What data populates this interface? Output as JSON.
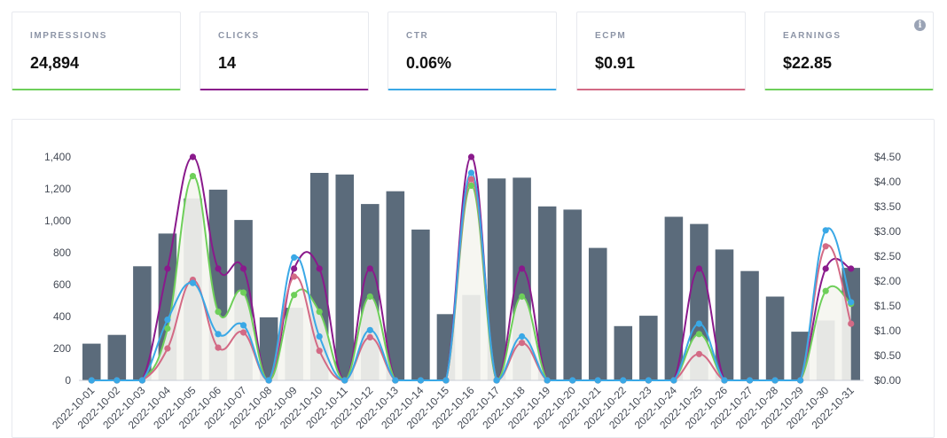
{
  "cards": [
    {
      "label": "IMPRESSIONS",
      "value": "24,894",
      "accent": "#6ecf5a"
    },
    {
      "label": "CLICKS",
      "value": "14",
      "accent": "#8a1a8c"
    },
    {
      "label": "CTR",
      "value": "0.06%",
      "accent": "#3aa8e6"
    },
    {
      "label": "ECPM",
      "value": "$0.91",
      "accent": "#d36a85"
    },
    {
      "label": "EARNINGS",
      "value": "$22.85",
      "accent": "#6ecf5a"
    }
  ],
  "info_icon": {
    "glyph": "i",
    "icon": "info-icon"
  },
  "chart_data": {
    "type": "bar",
    "categories": [
      "2022-10-01",
      "2022-10-02",
      "2022-10-03",
      "2022-10-04",
      "2022-10-05",
      "2022-10-06",
      "2022-10-07",
      "2022-10-08",
      "2022-10-09",
      "2022-10-10",
      "2022-10-11",
      "2022-10-12",
      "2022-10-13",
      "2022-10-14",
      "2022-10-15",
      "2022-10-16",
      "2022-10-17",
      "2022-10-18",
      "2022-10-19",
      "2022-10-20",
      "2022-10-21",
      "2022-10-22",
      "2022-10-23",
      "2022-10-24",
      "2022-10-25",
      "2022-10-26",
      "2022-10-27",
      "2022-10-28",
      "2022-10-29",
      "2022-10-30",
      "2022-10-31"
    ],
    "bars": {
      "color": "#5b6b7b",
      "values": [
        230,
        285,
        715,
        920,
        1140,
        1195,
        1005,
        395,
        455,
        1300,
        1290,
        1105,
        1185,
        945,
        415,
        535,
        1265,
        1270,
        1090,
        1070,
        830,
        340,
        405,
        1025,
        980,
        820,
        685,
        525,
        305,
        375,
        705
      ]
    },
    "left_axis": {
      "min": 0,
      "max": 1400,
      "ticks": [
        "0",
        "200",
        "400",
        "600",
        "800",
        "1,000",
        "1,200",
        "1,400"
      ]
    },
    "right_axis": {
      "min": 0,
      "max": 4.5,
      "ticks": [
        "$0.00",
        "$0.50",
        "$1.00",
        "$1.50",
        "$2.00",
        "$2.50",
        "$3.00",
        "$3.50",
        "$4.00",
        "$4.50"
      ]
    },
    "series": [
      {
        "color": "#8a1a8c",
        "values": [
          0,
          0,
          0,
          700,
          1400,
          700,
          700,
          0,
          700,
          700,
          0,
          700,
          0,
          0,
          0,
          1400,
          0,
          700,
          0,
          0,
          0,
          0,
          0,
          0,
          700,
          0,
          0,
          0,
          0,
          700,
          700
        ]
      },
      {
        "color": "#6ecf5a",
        "values": [
          0,
          0,
          0,
          325,
          1280,
          430,
          550,
          0,
          535,
          430,
          0,
          525,
          0,
          0,
          0,
          1220,
          0,
          525,
          0,
          0,
          0,
          0,
          0,
          0,
          290,
          0,
          0,
          0,
          0,
          560,
          480
        ]
      },
      {
        "color": "#d36a85",
        "values": [
          0,
          0,
          0,
          200,
          630,
          205,
          300,
          0,
          650,
          185,
          0,
          270,
          0,
          0,
          0,
          1260,
          0,
          235,
          0,
          0,
          0,
          0,
          0,
          0,
          165,
          0,
          0,
          0,
          0,
          840,
          355
        ]
      },
      {
        "color": "#3aa8e6",
        "values": [
          0,
          0,
          0,
          380,
          610,
          290,
          345,
          0,
          770,
          275,
          0,
          315,
          0,
          0,
          0,
          1300,
          0,
          275,
          0,
          0,
          0,
          0,
          0,
          0,
          355,
          0,
          0,
          0,
          0,
          940,
          490
        ]
      }
    ]
  }
}
